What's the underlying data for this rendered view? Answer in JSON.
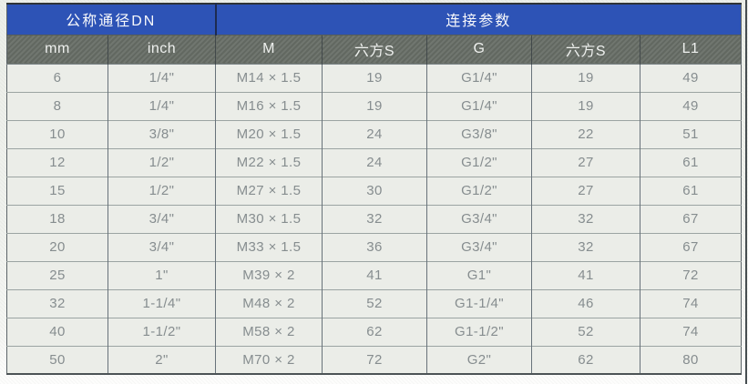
{
  "table": {
    "group_headers": [
      {
        "label": "公称通径DN",
        "span": 2
      },
      {
        "label": "连接参数",
        "span": 5
      }
    ],
    "columns": [
      "mm",
      "inch",
      "M",
      "六方S",
      "G",
      "六方S",
      "L1"
    ],
    "rows": [
      [
        "6",
        "1/4\"",
        "M14 × 1.5",
        "19",
        "G1/4\"",
        "19",
        "49"
      ],
      [
        "8",
        "1/4\"",
        "M16 × 1.5",
        "19",
        "G1/4\"",
        "19",
        "49"
      ],
      [
        "10",
        "3/8\"",
        "M20 × 1.5",
        "24",
        "G3/8\"",
        "22",
        "51"
      ],
      [
        "12",
        "1/2\"",
        "M22 × 1.5",
        "24",
        "G1/2\"",
        "27",
        "61"
      ],
      [
        "15",
        "1/2\"",
        "M27 × 1.5",
        "30",
        "G1/2\"",
        "27",
        "61"
      ],
      [
        "18",
        "3/4\"",
        "M30 × 1.5",
        "32",
        "G3/4\"",
        "32",
        "67"
      ],
      [
        "20",
        "3/4\"",
        "M33 × 1.5",
        "36",
        "G3/4\"",
        "32",
        "67"
      ],
      [
        "25",
        "1\"",
        "M39 × 2",
        "41",
        "G1\"",
        "41",
        "72"
      ],
      [
        "32",
        "1-1/4\"",
        "M48 × 2",
        "52",
        "G1-1/4\"",
        "46",
        "74"
      ],
      [
        "40",
        "1-1/2\"",
        "M58 × 2",
        "62",
        "G1-1/2\"",
        "52",
        "74"
      ],
      [
        "50",
        "2\"",
        "M70 × 2",
        "72",
        "G2\"",
        "62",
        "80"
      ]
    ],
    "colors": {
      "header_blue": "#2d53b6",
      "header_gray": "#686e67",
      "cell_bg": "#ebede8",
      "cell_text": "#868d8f",
      "divider_dark": "#1d2b50"
    }
  }
}
